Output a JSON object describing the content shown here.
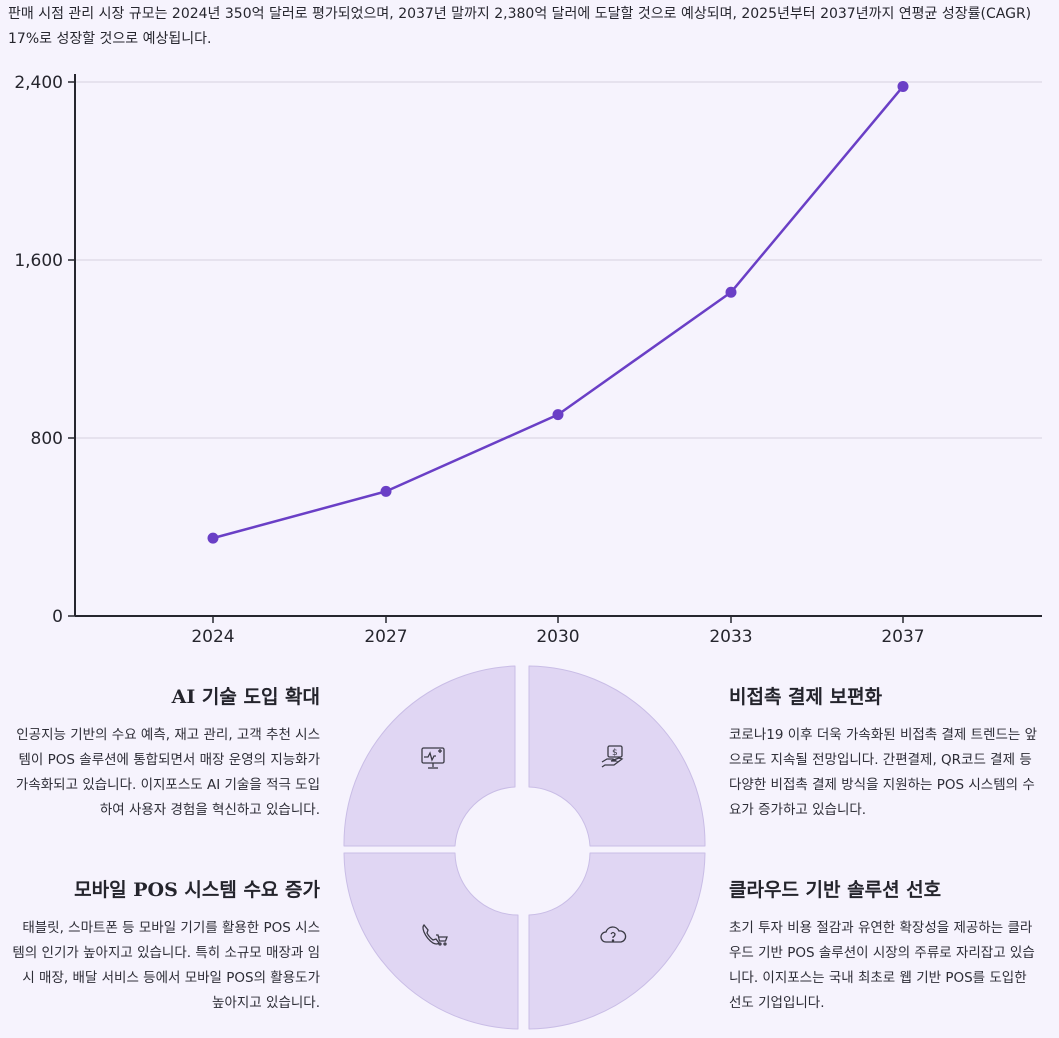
{
  "intro": {
    "text": "판매 시점 관리 시장 규모는 2024년 350억 달러로 평가되었으며, 2037년 말까지 2,380억 달러에 도달할 것으로 예상되며, 2025년부터 2037년까지 연평균 성장률(CAGR) 17%로 성장할 것으로 예상됩니다."
  },
  "chart_data": {
    "type": "line",
    "title": "",
    "xlabel": "",
    "ylabel": "",
    "x": [
      "2024",
      "2027",
      "2030",
      "2033",
      "2037"
    ],
    "series": [
      {
        "values": [
          350,
          560,
          905,
          1455,
          2380
        ]
      }
    ],
    "ylim": [
      0,
      2400
    ],
    "yticks": [
      0,
      800,
      1600,
      2400
    ],
    "ytick_labels": [
      "0",
      "800",
      "1,600",
      "2,400"
    ],
    "grid": true,
    "line_color": "#6a3fc6"
  },
  "features": {
    "ai": {
      "title": "AI 기술 도입 확대",
      "body": "인공지능 기반의 수요 예측, 재고 관리, 고객 추천 시스템이 POS 솔루션에 통합되면서 매장 운영의 지능화가 가속화되고 있습니다. 이지포스도 AI 기술을 적극 도입하여 사용자 경험을 혁신하고 있습니다.",
      "icon": "monitor-health-icon"
    },
    "contactless": {
      "title": "비접촉 결제 보편화",
      "body": "코로나19 이후 더욱 가속화된 비접촉 결제 트렌드는 앞으로도 지속될 전망입니다. 간편결제, QR코드 결제 등 다양한 비접촉 결제 방식을 지원하는 POS 시스템의 수요가 증가하고 있습니다.",
      "icon": "hand-money-icon"
    },
    "mobile": {
      "title": "모바일 POS 시스템 수요 증가",
      "body": "태블릿, 스마트폰 등 모바일 기기를 활용한 POS 시스템의 인기가 높아지고 있습니다. 특히 소규모 매장과 임시 매장, 배달 서비스 등에서 모바일 POS의 활용도가 높아지고 있습니다.",
      "icon": "phone-cart-icon"
    },
    "cloud": {
      "title": "클라우드 기반 솔루션 선호",
      "body": "초기 투자 비용 절감과 유연한 확장성을 제공하는 클라우드 기반 POS 솔루션이 시장의 주류로 자리잡고 있습니다. 이지포스는 국내 최초로 웹 기반 POS를 도입한 선도 기업입니다.",
      "icon": "cloud-question-icon"
    }
  },
  "colors": {
    "background": "#f6f3fd",
    "accent": "#6a3fc6",
    "segment_fill": "#e0d6f3",
    "segment_stroke": "#c9bde6"
  }
}
